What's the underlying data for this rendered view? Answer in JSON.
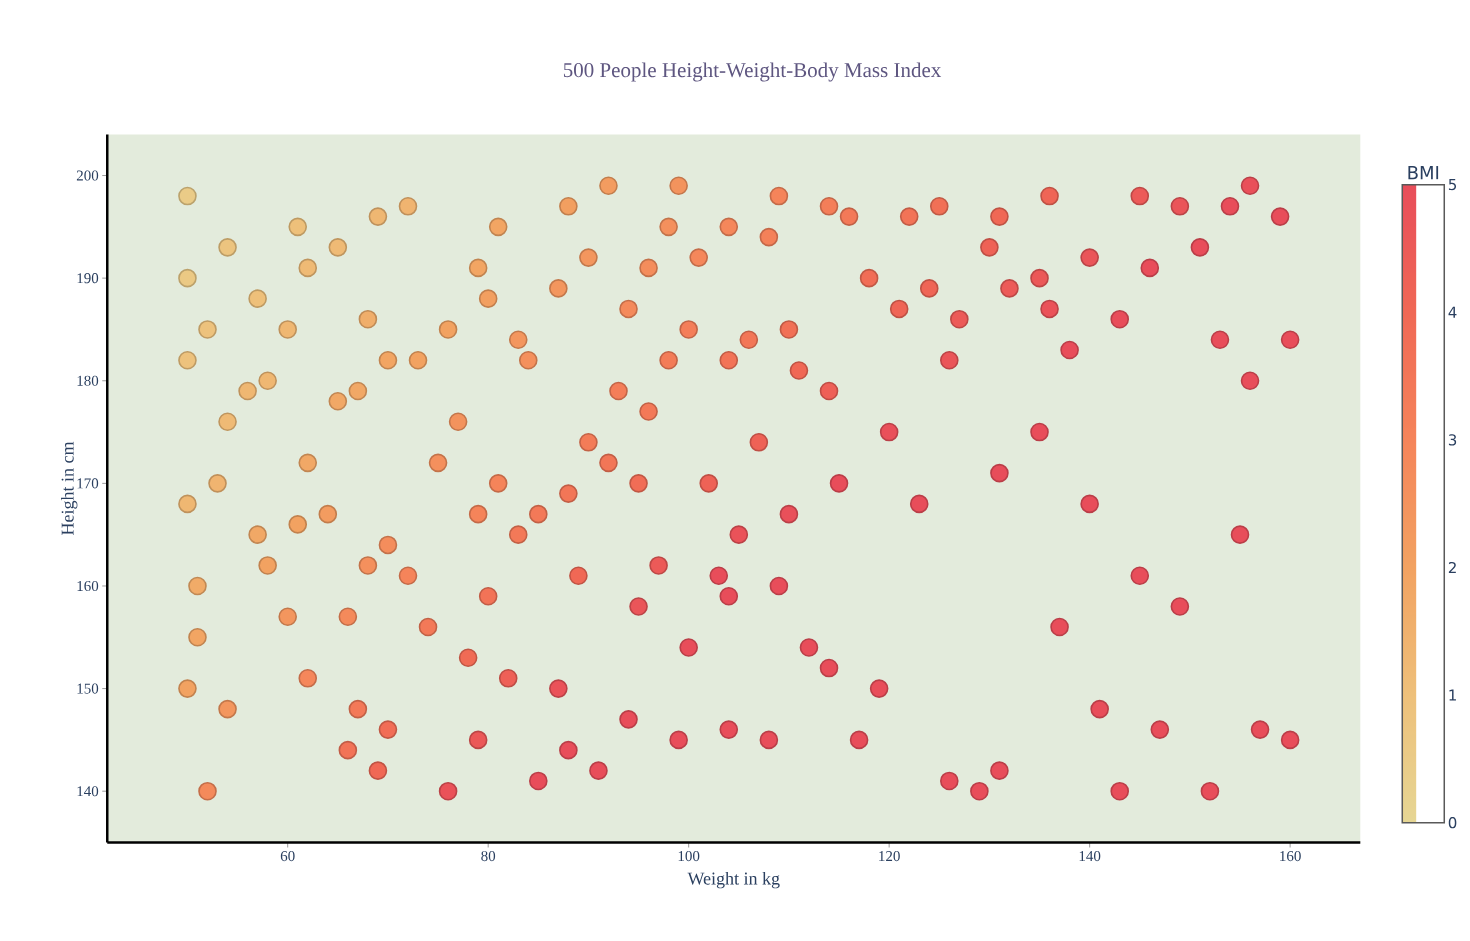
{
  "chart_data": {
    "type": "scatter",
    "title": "500 People Height-Weight-Body Mass Index",
    "xlabel": "Weight in kg",
    "ylabel": "Height in cm",
    "clabel": "BMI",
    "xlim": [
      42,
      167
    ],
    "ylim": [
      135,
      204
    ],
    "xticks": [
      60,
      80,
      100,
      120,
      140,
      160
    ],
    "yticks": [
      140,
      150,
      160,
      170,
      180,
      190,
      200
    ],
    "clim": [
      0,
      5
    ],
    "cticks": [
      0,
      1,
      2,
      3,
      4,
      5
    ],
    "marker": "circle",
    "grid": false,
    "x": [
      50,
      50,
      50,
      50,
      50,
      51,
      52,
      52,
      51,
      53,
      54,
      54,
      54,
      56,
      57,
      57,
      58,
      58,
      60,
      60,
      61,
      61,
      62,
      62,
      62,
      64,
      65,
      65,
      66,
      66,
      67,
      67,
      68,
      68,
      69,
      69,
      70,
      70,
      70,
      72,
      72,
      73,
      74,
      75,
      76,
      76,
      77,
      78,
      79,
      79,
      79,
      80,
      80,
      81,
      81,
      82,
      83,
      83,
      84,
      85,
      85,
      87,
      87,
      88,
      88,
      89,
      90,
      90,
      91,
      92,
      92,
      93,
      94,
      94,
      95,
      95,
      96,
      96,
      97,
      98,
      98,
      99,
      99,
      100,
      100,
      101,
      102,
      103,
      104,
      104,
      104,
      105,
      106,
      107,
      108,
      108,
      109,
      109,
      110,
      110,
      111,
      112,
      114,
      114,
      115,
      116,
      117,
      118,
      119,
      120,
      121,
      122,
      123,
      124,
      125,
      126,
      126,
      127,
      129,
      130,
      131,
      131,
      132,
      135,
      135,
      136,
      136,
      137,
      138,
      140,
      140,
      141,
      143,
      145,
      145,
      146,
      147,
      149,
      149,
      151,
      152,
      153,
      154,
      155,
      156,
      156,
      157,
      159,
      160,
      160,
      88,
      143,
      131,
      114,
      104
    ],
    "values": [
      198,
      190,
      182,
      168,
      150,
      155,
      185,
      140,
      160,
      170,
      193,
      176,
      148,
      179,
      188,
      165,
      180,
      162,
      185,
      157,
      195,
      166,
      191,
      172,
      151,
      167,
      193,
      178,
      157,
      144,
      179,
      148,
      186,
      162,
      196,
      142,
      182,
      164,
      146,
      197,
      161,
      182,
      156,
      172,
      185,
      140,
      176,
      153,
      191,
      167,
      145,
      188,
      159,
      195,
      170,
      151,
      184,
      165,
      182,
      167,
      141,
      189,
      150,
      197,
      169,
      161,
      192,
      174,
      142,
      199,
      172,
      179,
      187,
      147,
      170,
      158,
      191,
      177,
      162,
      195,
      182,
      199,
      145,
      185,
      154,
      192,
      170,
      161,
      195,
      182,
      146,
      165,
      184,
      174,
      194,
      145,
      198,
      160,
      185,
      167,
      181,
      154,
      197,
      179,
      170,
      196,
      145,
      190,
      150,
      175,
      187,
      196,
      168,
      189,
      197,
      182,
      141,
      186,
      140,
      193,
      196,
      171,
      189,
      190,
      175,
      198,
      187,
      156,
      183,
      192,
      168,
      148,
      186,
      198,
      161,
      191,
      146,
      197,
      158,
      193,
      140,
      184,
      197,
      165,
      199,
      180,
      146,
      196,
      184,
      145,
      144,
      140,
      142,
      152,
      159
    ],
    "cvalues": [
      0.5,
      0.6,
      0.9,
      1.3,
      2.0,
      1.9,
      0.9,
      2.8,
      1.7,
      1.4,
      0.8,
      1.2,
      2.4,
      1.3,
      1.0,
      1.8,
      1.3,
      2.0,
      1.3,
      2.4,
      1.0,
      2.0,
      1.2,
      1.8,
      2.9,
      2.2,
      1.2,
      1.8,
      2.8,
      3.6,
      1.8,
      3.4,
      1.6,
      2.6,
      1.3,
      4.0,
      1.9,
      2.7,
      3.8,
      1.4,
      3.0,
      2.0,
      3.4,
      2.6,
      2.0,
      4.8,
      2.5,
      3.9,
      1.9,
      3.0,
      4.6,
      2.1,
      3.6,
      1.9,
      3.0,
      4.3,
      2.4,
      3.4,
      2.6,
      3.4,
      5,
      2.4,
      4.8,
      2.1,
      3.5,
      4.0,
      2.4,
      3.3,
      5,
      2.2,
      3.5,
      3.2,
      2.8,
      5,
      3.8,
      4.7,
      2.7,
      3.4,
      4.5,
      2.6,
      3.3,
      2.5,
      5,
      3.2,
      5,
      2.9,
      4.2,
      5,
      2.9,
      3.6,
      5,
      4.8,
      3.5,
      4.2,
      3.1,
      5,
      3.0,
      5,
      3.7,
      4.9,
      4.0,
      5,
      3.2,
      4.3,
      5,
      3.4,
      5,
      3.8,
      5,
      4.9,
      4.1,
      3.6,
      5,
      4.1,
      3.7,
      4.7,
      5,
      4.5,
      5,
      4.2,
      4.0,
      5,
      4.5,
      4.6,
      5,
      4.1,
      4.8,
      5,
      5,
      4.7,
      5,
      5,
      5,
      4.5,
      5,
      5,
      5,
      4.7,
      5,
      5,
      5,
      5,
      5,
      5,
      4.9,
      5,
      5,
      5,
      5,
      5,
      5,
      5,
      5,
      5,
      5
    ]
  }
}
